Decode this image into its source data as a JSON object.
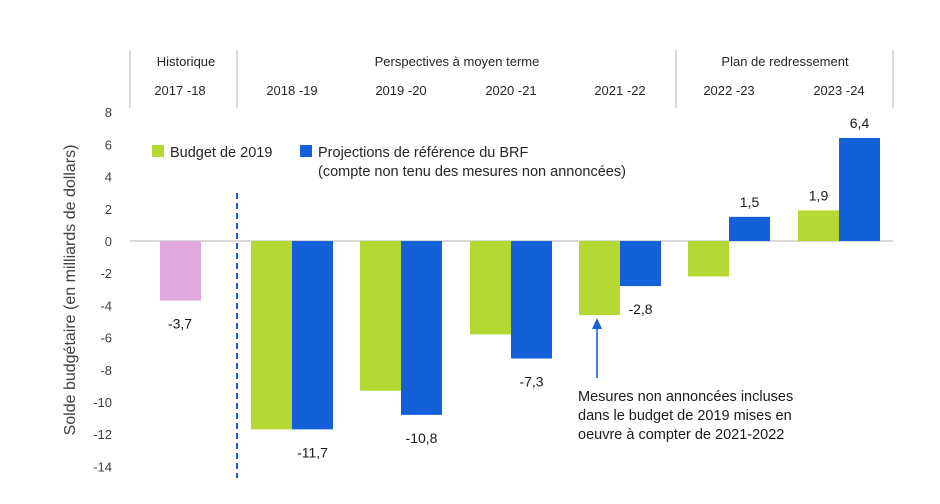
{
  "chart_data": {
    "type": "bar",
    "ylabel": "Solde budgétaire (en milliards de dollars)",
    "ylim": [
      -14,
      8
    ],
    "yticks": [
      8,
      6,
      4,
      2,
      0,
      -2,
      -4,
      -6,
      -8,
      -10,
      -12,
      -14
    ],
    "categories": [
      "2017 -18",
      "2018 -19",
      "2019 -20",
      "2020 -21",
      "2021 -22",
      "2022 -23",
      "2023 -24"
    ],
    "period_groups": [
      {
        "label": "Historique"
      },
      {
        "label": "Perspectives à moyen terme"
      },
      {
        "label": "Plan de redressement"
      }
    ],
    "historical": {
      "category": "2017 -18",
      "value": -3.7,
      "label": "-3,7",
      "color": "#e0a8dc"
    },
    "series": [
      {
        "name": "Budget de 2019",
        "color": "#b5d832",
        "values": [
          null,
          -11.7,
          -9.3,
          -5.8,
          -4.6,
          -2.2,
          1.9
        ],
        "labels": [
          "",
          "",
          "",
          "",
          "",
          "",
          "1,9"
        ]
      },
      {
        "name": "Projections de référence du BRF",
        "color": "#1360d8",
        "values": [
          null,
          -11.7,
          -10.8,
          -7.3,
          -2.8,
          1.5,
          6.4
        ],
        "labels": [
          "",
          "-11,7",
          "-10,8",
          "-7,3",
          "-2,8",
          "1,5",
          "6,4"
        ]
      }
    ],
    "legend": {
      "budget": "Budget de 2019",
      "brf_line1": "Projections de référence du BRF",
      "brf_line2": "(compte non tenu des mesures non annoncées)"
    },
    "annotation": [
      "Mesures non annoncées incluses",
      "dans le budget de 2019 mises en",
      "oeuvre à compter de 2021-2022"
    ],
    "colors": {
      "axis": "#c0c0c0",
      "divider": "#1360d8",
      "arrow": "#1360d8"
    }
  }
}
